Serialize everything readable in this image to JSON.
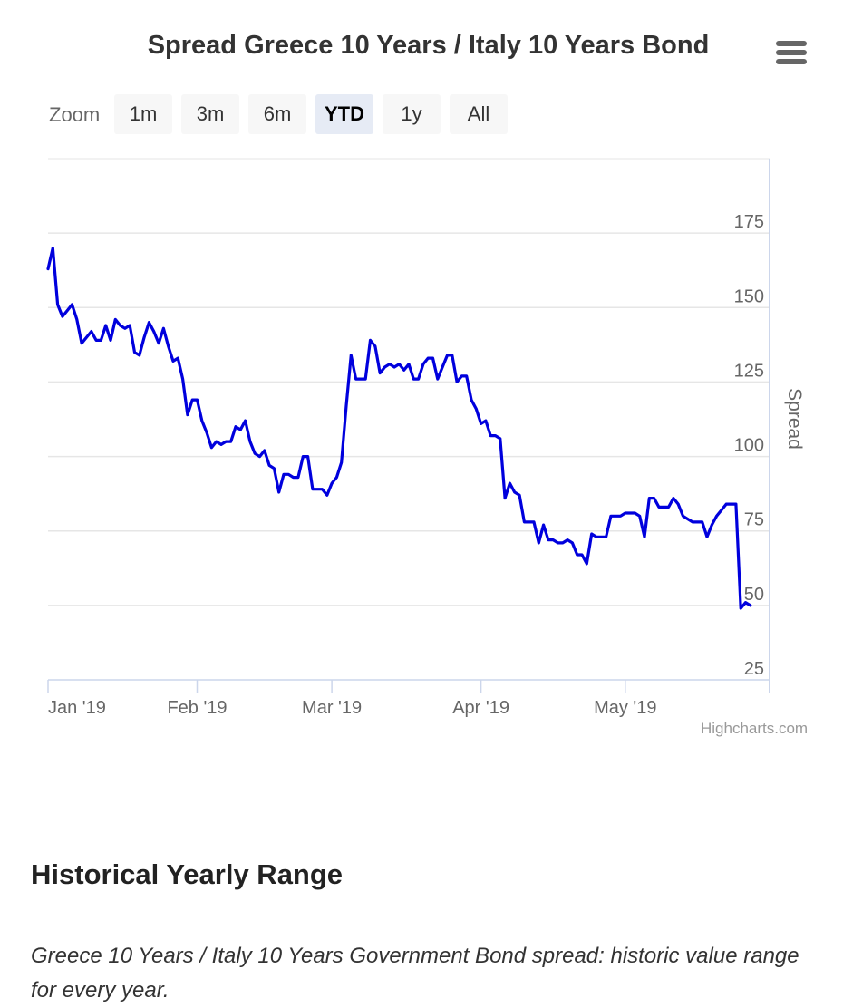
{
  "page": {
    "heading": "Historical Yearly Range",
    "description": "Greece 10 Years / Italy 10 Years Government Bond spread: historic value range for every year.",
    "credits": "Highcharts.com",
    "menu_icon": "hamburger-menu-icon"
  },
  "zoom": {
    "label": "Zoom",
    "buttons": [
      {
        "label": "1m",
        "active": false
      },
      {
        "label": "3m",
        "active": false
      },
      {
        "label": "6m",
        "active": false
      },
      {
        "label": "YTD",
        "active": true
      },
      {
        "label": "1y",
        "active": false
      },
      {
        "label": "All",
        "active": false
      }
    ]
  },
  "chart_data": {
    "type": "line",
    "title": "Spread Greece 10 Years / Italy 10 Years Bond",
    "xlabel": "",
    "ylabel": "Spread",
    "y_axis_position": "right",
    "ylim": [
      25,
      200
    ],
    "yticks": [
      25,
      50,
      75,
      100,
      125,
      150,
      175
    ],
    "xlim": [
      "2019-01-01",
      "2019-05-31"
    ],
    "xticks": [
      {
        "date": "2019-01-01",
        "label": "Jan '19"
      },
      {
        "date": "2019-02-01",
        "label": "Feb '19"
      },
      {
        "date": "2019-03-01",
        "label": "Mar '19"
      },
      {
        "date": "2019-04-01",
        "label": "Apr '19"
      },
      {
        "date": "2019-05-01",
        "label": "May '19"
      }
    ],
    "grid": true,
    "line_color": "#0000dd",
    "series": [
      {
        "points": [
          [
            "2019-01-01",
            163
          ],
          [
            "2019-01-02",
            170
          ],
          [
            "2019-01-03",
            151
          ],
          [
            "2019-01-04",
            147
          ],
          [
            "2019-01-05",
            149
          ],
          [
            "2019-01-06",
            151
          ],
          [
            "2019-01-07",
            146
          ],
          [
            "2019-01-08",
            138
          ],
          [
            "2019-01-09",
            140
          ],
          [
            "2019-01-10",
            142
          ],
          [
            "2019-01-11",
            139
          ],
          [
            "2019-01-12",
            139
          ],
          [
            "2019-01-13",
            144
          ],
          [
            "2019-01-14",
            139
          ],
          [
            "2019-01-15",
            146
          ],
          [
            "2019-01-16",
            144
          ],
          [
            "2019-01-17",
            143
          ],
          [
            "2019-01-18",
            144
          ],
          [
            "2019-01-19",
            135
          ],
          [
            "2019-01-20",
            134
          ],
          [
            "2019-01-21",
            140
          ],
          [
            "2019-01-22",
            145
          ],
          [
            "2019-01-23",
            142
          ],
          [
            "2019-01-24",
            138
          ],
          [
            "2019-01-25",
            143
          ],
          [
            "2019-01-26",
            137
          ],
          [
            "2019-01-27",
            132
          ],
          [
            "2019-01-28",
            133
          ],
          [
            "2019-01-29",
            126
          ],
          [
            "2019-01-30",
            114
          ],
          [
            "2019-01-31",
            119
          ],
          [
            "2019-02-01",
            119
          ],
          [
            "2019-02-02",
            112
          ],
          [
            "2019-02-03",
            108
          ],
          [
            "2019-02-04",
            103
          ],
          [
            "2019-02-05",
            105
          ],
          [
            "2019-02-06",
            104
          ],
          [
            "2019-02-07",
            105
          ],
          [
            "2019-02-08",
            105
          ],
          [
            "2019-02-09",
            110
          ],
          [
            "2019-02-10",
            109
          ],
          [
            "2019-02-11",
            112
          ],
          [
            "2019-02-12",
            105
          ],
          [
            "2019-02-13",
            101
          ],
          [
            "2019-02-14",
            100
          ],
          [
            "2019-02-15",
            102
          ],
          [
            "2019-02-16",
            97
          ],
          [
            "2019-02-17",
            96
          ],
          [
            "2019-02-18",
            88
          ],
          [
            "2019-02-19",
            94
          ],
          [
            "2019-02-20",
            94
          ],
          [
            "2019-02-21",
            93
          ],
          [
            "2019-02-22",
            93
          ],
          [
            "2019-02-23",
            100
          ],
          [
            "2019-02-24",
            100
          ],
          [
            "2019-02-25",
            89
          ],
          [
            "2019-02-26",
            89
          ],
          [
            "2019-02-27",
            89
          ],
          [
            "2019-02-28",
            87
          ],
          [
            "2019-03-01",
            91
          ],
          [
            "2019-03-02",
            93
          ],
          [
            "2019-03-03",
            98
          ],
          [
            "2019-03-04",
            117
          ],
          [
            "2019-03-05",
            134
          ],
          [
            "2019-03-06",
            126
          ],
          [
            "2019-03-07",
            126
          ],
          [
            "2019-03-08",
            126
          ],
          [
            "2019-03-09",
            139
          ],
          [
            "2019-03-10",
            137
          ],
          [
            "2019-03-11",
            128
          ],
          [
            "2019-03-12",
            130
          ],
          [
            "2019-03-13",
            131
          ],
          [
            "2019-03-14",
            130
          ],
          [
            "2019-03-15",
            131
          ],
          [
            "2019-03-16",
            129
          ],
          [
            "2019-03-17",
            131
          ],
          [
            "2019-03-18",
            126
          ],
          [
            "2019-03-19",
            126
          ],
          [
            "2019-03-20",
            131
          ],
          [
            "2019-03-21",
            133
          ],
          [
            "2019-03-22",
            133
          ],
          [
            "2019-03-23",
            126
          ],
          [
            "2019-03-24",
            130
          ],
          [
            "2019-03-25",
            134
          ],
          [
            "2019-03-26",
            134
          ],
          [
            "2019-03-27",
            125
          ],
          [
            "2019-03-28",
            127
          ],
          [
            "2019-03-29",
            127
          ],
          [
            "2019-03-30",
            119
          ],
          [
            "2019-03-31",
            116
          ],
          [
            "2019-04-01",
            111
          ],
          [
            "2019-04-02",
            112
          ],
          [
            "2019-04-03",
            107
          ],
          [
            "2019-04-04",
            107
          ],
          [
            "2019-04-05",
            106
          ],
          [
            "2019-04-06",
            86
          ],
          [
            "2019-04-07",
            91
          ],
          [
            "2019-04-08",
            88
          ],
          [
            "2019-04-09",
            87
          ],
          [
            "2019-04-10",
            78
          ],
          [
            "2019-04-11",
            78
          ],
          [
            "2019-04-12",
            78
          ],
          [
            "2019-04-13",
            71
          ],
          [
            "2019-04-14",
            77
          ],
          [
            "2019-04-15",
            72
          ],
          [
            "2019-04-16",
            72
          ],
          [
            "2019-04-17",
            71
          ],
          [
            "2019-04-18",
            71
          ],
          [
            "2019-04-19",
            72
          ],
          [
            "2019-04-20",
            71
          ],
          [
            "2019-04-21",
            67
          ],
          [
            "2019-04-22",
            67
          ],
          [
            "2019-04-23",
            64
          ],
          [
            "2019-04-24",
            74
          ],
          [
            "2019-04-25",
            73
          ],
          [
            "2019-04-26",
            73
          ],
          [
            "2019-04-27",
            73
          ],
          [
            "2019-04-28",
            80
          ],
          [
            "2019-04-29",
            80
          ],
          [
            "2019-04-30",
            80
          ],
          [
            "2019-05-01",
            81
          ],
          [
            "2019-05-02",
            81
          ],
          [
            "2019-05-03",
            81
          ],
          [
            "2019-05-04",
            80
          ],
          [
            "2019-05-05",
            73
          ],
          [
            "2019-05-06",
            86
          ],
          [
            "2019-05-07",
            86
          ],
          [
            "2019-05-08",
            83
          ],
          [
            "2019-05-09",
            83
          ],
          [
            "2019-05-10",
            83
          ],
          [
            "2019-05-11",
            86
          ],
          [
            "2019-05-12",
            84
          ],
          [
            "2019-05-13",
            80
          ],
          [
            "2019-05-14",
            79
          ],
          [
            "2019-05-15",
            78
          ],
          [
            "2019-05-16",
            78
          ],
          [
            "2019-05-17",
            78
          ],
          [
            "2019-05-18",
            73
          ],
          [
            "2019-05-19",
            77
          ],
          [
            "2019-05-20",
            80
          ],
          [
            "2019-05-21",
            82
          ],
          [
            "2019-05-22",
            84
          ],
          [
            "2019-05-23",
            84
          ],
          [
            "2019-05-24",
            84
          ],
          [
            "2019-05-25",
            49
          ],
          [
            "2019-05-26",
            51
          ],
          [
            "2019-05-27",
            50
          ]
        ]
      }
    ]
  }
}
